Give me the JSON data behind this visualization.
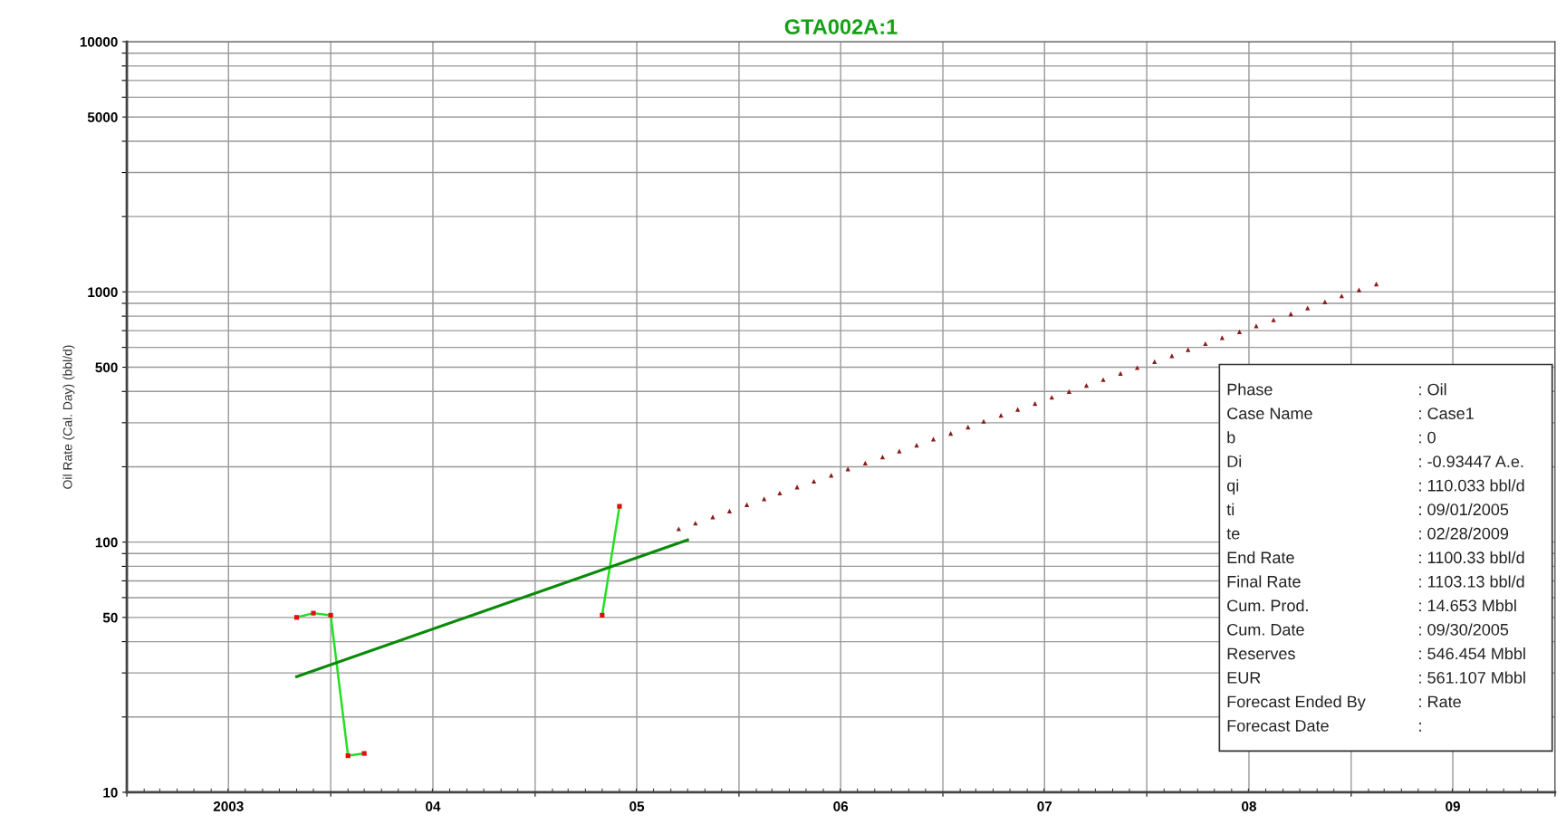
{
  "chart_data": {
    "type": "line",
    "title": "GTA002A:1",
    "ylabel": "Oil Rate (Cal. Day) (bbl/d)",
    "log": "y",
    "grid": true,
    "legend": false,
    "xlim": [
      "2003-01-01",
      "2010-01-01"
    ],
    "xticks": [
      {
        "value": "2003-01-01",
        "label": null
      },
      {
        "value": "2003-07-02",
        "label": "2003"
      },
      {
        "value": "2004-01-01",
        "label": null
      },
      {
        "value": "2004-07-02",
        "label": "04"
      },
      {
        "value": "2005-01-01",
        "label": null
      },
      {
        "value": "2005-07-02",
        "label": "05"
      },
      {
        "value": "2006-01-01",
        "label": null
      },
      {
        "value": "2006-07-02",
        "label": "06"
      },
      {
        "value": "2007-01-01",
        "label": null
      },
      {
        "value": "2007-07-02",
        "label": "07"
      },
      {
        "value": "2008-01-01",
        "label": null
      },
      {
        "value": "2008-07-02",
        "label": "08"
      },
      {
        "value": "2009-01-01",
        "label": null
      },
      {
        "value": "2009-07-02",
        "label": "09"
      },
      {
        "value": "2010-01-01",
        "label": null
      }
    ],
    "ylim": [
      10,
      10000
    ],
    "yticks": [
      10,
      {
        "value": 20,
        "label": null
      },
      {
        "value": 30,
        "label": null
      },
      {
        "value": 40,
        "label": null
      },
      50,
      {
        "value": 60,
        "label": null
      },
      {
        "value": 70,
        "label": null
      },
      {
        "value": 80,
        "label": null
      },
      {
        "value": 90,
        "label": null
      },
      100,
      {
        "value": 200,
        "label": null
      },
      {
        "value": 300,
        "label": null
      },
      {
        "value": 400,
        "label": null
      },
      500,
      {
        "value": 600,
        "label": null
      },
      {
        "value": 700,
        "label": null
      },
      {
        "value": 800,
        "label": null
      },
      {
        "value": 900,
        "label": null
      },
      1000,
      {
        "value": 2000,
        "label": null
      },
      {
        "value": 3000,
        "label": null
      },
      {
        "value": 4000,
        "label": null
      },
      5000,
      {
        "value": 6000,
        "label": null
      },
      {
        "value": 7000,
        "label": null
      },
      {
        "value": 8000,
        "label": null
      },
      {
        "value": 9000,
        "label": null
      },
      10000
    ],
    "series": [
      {
        "color": "#22e022",
        "marker": "none",
        "x": [
          "2003-11-01",
          "2003-12-01",
          "2004-01-01",
          "2004-02-01",
          "2004-03-01",
          "2004-09-01",
          "2005-05-01",
          "2005-06-01"
        ],
        "values": [
          50,
          52,
          51,
          14,
          14.3,
          null,
          51,
          139
        ]
      },
      {
        "type": "scatter",
        "color": "#e01010",
        "marker": "square",
        "x": [
          "2003-11-01",
          "2003-12-01",
          "2004-01-01",
          "2004-02-01",
          "2004-03-01",
          "2005-05-01",
          "2005-06-01"
        ],
        "values": [
          50,
          52,
          51,
          14,
          14.3,
          51,
          139
        ]
      },
      {
        "color": "#0a8a0a",
        "marker": "none",
        "x": [
          "2003-11-01",
          "2005-10-01"
        ],
        "values": [
          29,
          102
        ]
      },
      {
        "type": "scatter",
        "color": "#8b1a1a",
        "marker": "triangle",
        "x": [
          "2005-09-15",
          "2005-10-15",
          "2005-11-15",
          "2005-12-15",
          "2006-01-15",
          "2006-02-15",
          "2006-03-15",
          "2006-04-15",
          "2006-05-15",
          "2006-06-15",
          "2006-07-15",
          "2006-08-15",
          "2006-09-15",
          "2006-10-15",
          "2006-11-15",
          "2006-12-15",
          "2007-01-15",
          "2007-02-15",
          "2007-03-15",
          "2007-04-15",
          "2007-05-15",
          "2007-06-15",
          "2007-07-15",
          "2007-08-15",
          "2007-09-15",
          "2007-10-15",
          "2007-11-15",
          "2007-12-15",
          "2008-01-15",
          "2008-02-15",
          "2008-03-15",
          "2008-04-15",
          "2008-05-15",
          "2008-06-15",
          "2008-07-15",
          "2008-08-15",
          "2008-09-15",
          "2008-10-15",
          "2008-11-15",
          "2008-12-15",
          "2009-01-15",
          "2009-02-15"
        ],
        "values": [
          113,
          119,
          126,
          133,
          141,
          149,
          157,
          166,
          175,
          185,
          196,
          207,
          219,
          231,
          244,
          258,
          272,
          288,
          304,
          321,
          339,
          358,
          379,
          400,
          423,
          446,
          472,
          498,
          526,
          556,
          588,
          621,
          656,
          693,
          732,
          773,
          817,
          863,
          912,
          964,
          1018,
          1075
        ]
      }
    ],
    "annotations": [
      "Phase : Oil",
      "Case Name : Case1",
      "b : 0",
      "Di : -0.93447 A.e.",
      "qi : 110.033 bbl/d",
      "ti : 09/01/2005",
      "te : 02/28/2009",
      "End Rate : 1100.33 bbl/d",
      "Final Rate : 1103.13 bbl/d",
      "Cum. Prod. : 14.653 Mbbl",
      "Cum. Date : 09/30/2005",
      "Reserves : 546.454 Mbbl",
      "EUR : 561.107 Mbbl",
      "Forecast Ended By : Rate",
      "Forecast Date :"
    ]
  }
}
